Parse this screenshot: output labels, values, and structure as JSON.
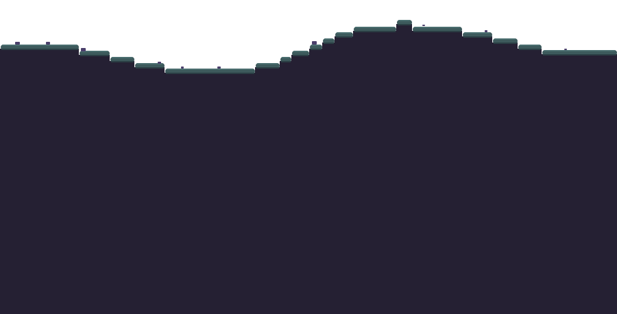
{
  "scene": {
    "colors": {
      "sky": "#ffffff",
      "ground": "#252033",
      "grass": "#3d5a5c",
      "grass_highlight": "#4a6e6f",
      "grass_shadow": "#2b3e44",
      "pebble": "#4a3f6b"
    }
  }
}
